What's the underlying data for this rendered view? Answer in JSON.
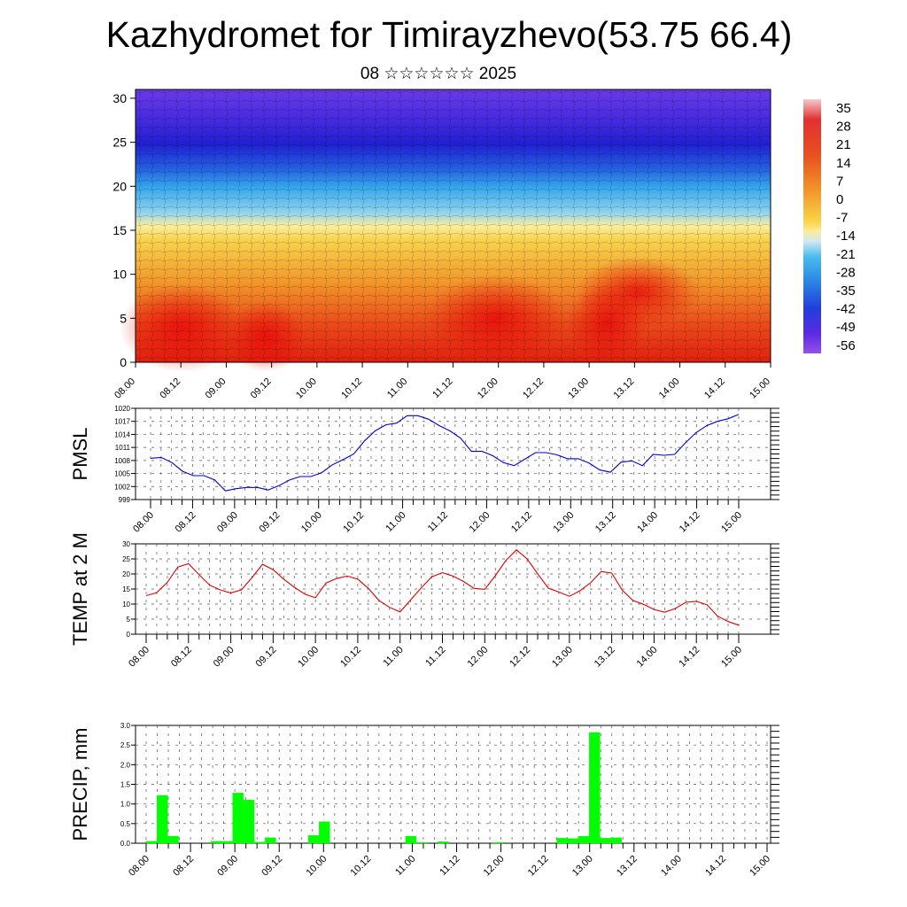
{
  "title": "Kazhydromet for Timirayzhevo(53.75 66.4)",
  "subtitle": "08 ☆☆☆☆☆☆ 2025",
  "time_labels": [
    "08.00",
    "08.12",
    "09.00",
    "09.12",
    "10.00",
    "10.12",
    "11.00",
    "11.12",
    "12.00",
    "12.12",
    "13.00",
    "13.12",
    "14.00",
    "14.12",
    "15.00"
  ],
  "colors": {
    "pmsl": "#0000cc",
    "temp": "#dd0000",
    "precip": "#00ff00"
  },
  "chart_data": [
    {
      "type": "heatmap",
      "name": "temperature cross-section",
      "xlabel": "",
      "ylabel": "",
      "ylim": [
        0,
        31
      ],
      "yticks": [
        0,
        5,
        10,
        15,
        20,
        25,
        30
      ],
      "x_tick_labels": [
        "08.00",
        "08.12",
        "09.00",
        "09.12",
        "10.00",
        "10.12",
        "11.00",
        "11.12",
        "12.00",
        "12.12",
        "13.00",
        "13.12",
        "14.00",
        "14.12",
        "15.00"
      ],
      "colorbar": [
        35,
        28,
        21,
        14,
        7,
        0,
        -7,
        -14,
        -21,
        -28,
        -35,
        -42,
        -49,
        -56
      ],
      "colorbar_colors": [
        "#f4c6c8",
        "#e63030",
        "#e02020",
        "#e85020",
        "#f08a2a",
        "#f6b640",
        "#fbe46a",
        "#cfe8f0",
        "#4fc0ee",
        "#2a90e8",
        "#2454e2",
        "#3a2cdc",
        "#5a2ae0",
        "#8a48e8"
      ]
    },
    {
      "type": "line",
      "ylabel": "PMSL",
      "ylim": [
        999,
        1020
      ],
      "yticks": [
        999,
        1002,
        1005,
        1008,
        1011,
        1014,
        1017,
        1020
      ],
      "x_tick_labels": [
        "08.00",
        "08.12",
        "09.00",
        "09.12",
        "10.00",
        "10.12",
        "11.00",
        "11.12",
        "12.00",
        "12.12",
        "13.00",
        "13.12",
        "14.00",
        "14.12",
        "15.00"
      ],
      "series": [
        {
          "values": [
            1008.5,
            1008.7,
            1007.5,
            1005.5,
            1004.5,
            1004.5,
            1003.5,
            1001,
            1001.5,
            1001.8,
            1001.8,
            1001.2,
            1002.2,
            1003.5,
            1004.3,
            1004.3,
            1005.2,
            1007,
            1008.2,
            1009.5,
            1012.5,
            1014.8,
            1016.2,
            1016.6,
            1018.3,
            1018.3,
            1017.5,
            1016,
            1014.8,
            1013.1,
            1010.1,
            1010.1,
            1009.1,
            1007.5,
            1006.8,
            1008.3,
            1009.8,
            1009.8,
            1009.3,
            1008.4,
            1008.4,
            1007.4,
            1005.8,
            1005.3,
            1007.6,
            1007.9,
            1006.8,
            1009.4,
            1009.2,
            1009.4,
            1012,
            1014.4,
            1016,
            1017,
            1017.6,
            1018.6
          ]
        }
      ]
    },
    {
      "type": "line",
      "ylabel": "TEMP at 2 M",
      "ylim": [
        0,
        30
      ],
      "yticks": [
        0,
        5,
        10,
        15,
        20,
        25,
        30
      ],
      "x_tick_labels": [
        "08.00",
        "08.12",
        "09.00",
        "09.12",
        "10.00",
        "10.12",
        "11.00",
        "11.12",
        "12.00",
        "12.12",
        "13.00",
        "13.12",
        "14.00",
        "14.12",
        "15.00"
      ],
      "series": [
        {
          "values": [
            12.8,
            13.8,
            17.2,
            22.3,
            23.4,
            19.8,
            16.3,
            14.7,
            13.7,
            14.7,
            18.8,
            23.2,
            21.4,
            18.3,
            15.6,
            13.3,
            12.1,
            17,
            18.5,
            19.3,
            18.3,
            15.2,
            11.2,
            8.9,
            7.4,
            11.4,
            15.4,
            19.1,
            20.4,
            19.3,
            17.5,
            15.2,
            14.9,
            19.4,
            24.5,
            28,
            25,
            20.1,
            15.3,
            14,
            12.6,
            14.4,
            17.1,
            20.8,
            20.3,
            14.6,
            11.2,
            9.9,
            8.2,
            7.3,
            8.5,
            10.6,
            10.9,
            9.8,
            6,
            4.2,
            3
          ]
        }
      ]
    },
    {
      "type": "bar",
      "ylabel": "PRECIP, mm",
      "ylim": [
        0,
        3.0
      ],
      "yticks": [
        0.0,
        0.5,
        1.0,
        1.5,
        2.0,
        2.5,
        3.0
      ],
      "x_tick_labels": [
        "08.00",
        "08.12",
        "09.00",
        "09.12",
        "10.00",
        "10.12",
        "11.00",
        "11.12",
        "12.00",
        "12.12",
        "13.00",
        "13.12",
        "14.00",
        "14.12",
        "15.00"
      ],
      "values": [
        0.05,
        1.22,
        0.18,
        0,
        0,
        0,
        0.05,
        0.05,
        1.28,
        1.1,
        0.03,
        0.14,
        0,
        0,
        0,
        0.2,
        0.55,
        0,
        0,
        0,
        0,
        0,
        0,
        0,
        0.18,
        0.02,
        0,
        0.04,
        0,
        0,
        0,
        0,
        0.02,
        0,
        0,
        0,
        0,
        0,
        0.13,
        0.12,
        0.18,
        2.82,
        0.13,
        0.14,
        0,
        0,
        0,
        0
      ]
    }
  ]
}
